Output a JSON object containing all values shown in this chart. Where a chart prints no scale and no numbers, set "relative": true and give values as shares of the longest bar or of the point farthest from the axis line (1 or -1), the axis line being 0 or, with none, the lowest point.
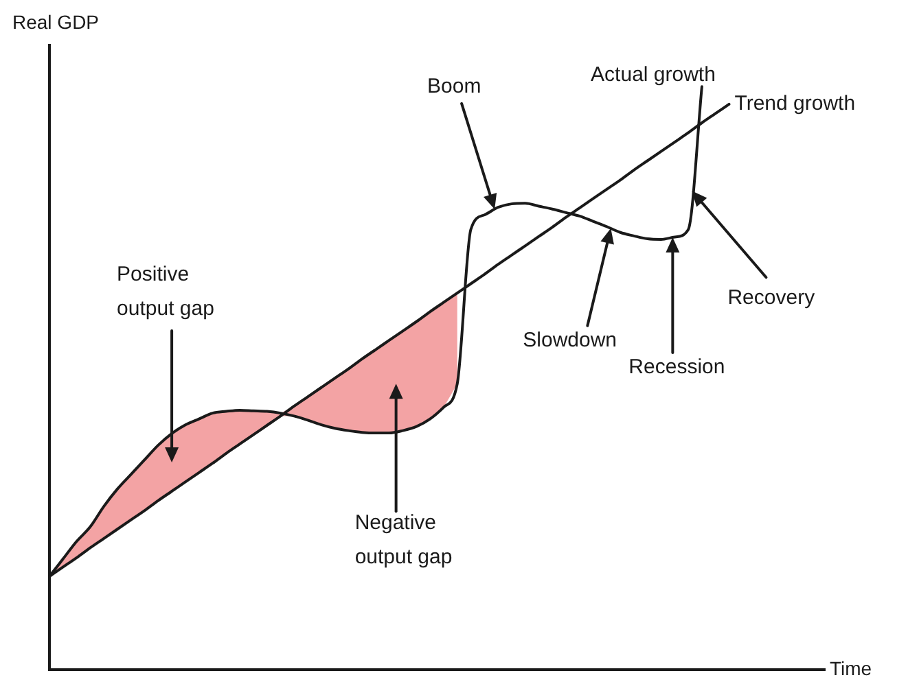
{
  "chart_data": {
    "type": "line",
    "relative": true,
    "xlabel": "Time",
    "ylabel": "Real GDP",
    "tick_labels": false,
    "marker": "none",
    "categories": [
      null,
      null,
      null,
      null,
      null,
      null,
      null,
      null,
      null,
      null,
      null,
      null,
      null,
      null,
      null,
      null,
      null,
      null,
      null,
      null,
      null,
      null,
      null,
      null,
      null,
      null,
      null,
      null,
      null,
      null,
      null,
      null,
      null,
      null,
      null,
      null,
      null,
      null,
      null,
      null,
      null,
      null,
      null,
      null,
      null,
      null,
      null,
      null,
      null,
      null,
      null,
      null,
      null,
      null,
      null,
      null,
      null,
      null
    ],
    "series": [
      {
        "name": "Trend growth",
        "color": "#1a1a1a",
        "values": [
          0.16,
          0.176,
          0.192,
          0.209,
          0.225,
          0.241,
          0.257,
          0.273,
          0.29,
          0.306,
          0.322,
          0.338,
          0.354,
          0.371,
          0.387,
          0.403,
          0.419,
          0.435,
          0.452,
          0.468,
          0.484,
          0.5,
          0.516,
          0.533,
          0.549,
          0.565,
          0.581,
          0.597,
          0.614,
          0.63,
          0.646,
          0.662,
          0.678,
          0.695,
          0.711,
          0.727,
          0.743,
          0.759,
          0.776,
          0.792,
          0.808,
          0.824,
          0.84,
          0.857,
          0.873,
          0.889,
          0.905,
          0.921,
          0.938,
          0.954,
          0.97,
          null,
          null,
          null,
          null,
          null,
          null,
          null
        ]
      },
      {
        "name": "Actual growth",
        "color": "#1a1a1a",
        "values": [
          0.16,
          0.19,
          0.22,
          0.245,
          0.28,
          0.31,
          0.335,
          0.36,
          0.385,
          0.405,
          0.42,
          0.43,
          0.44,
          0.443,
          0.445,
          0.444,
          0.443,
          0.44,
          0.435,
          0.428,
          0.42,
          0.414,
          0.41,
          0.407,
          0.406,
          0.406,
          0.41,
          0.417,
          0.43,
          0.45,
          0.49,
          0.755,
          0.78,
          0.793,
          0.799,
          0.8,
          0.795,
          0.79,
          0.784,
          0.778,
          0.769,
          0.76,
          0.75,
          0.744,
          0.739,
          0.738,
          0.742,
          0.755,
          1.0,
          null,
          null,
          null,
          null,
          null,
          null,
          null,
          null,
          null
        ]
      },
      {
        "color": "#e8474a",
        "values": [
          null,
          null,
          null,
          null,
          null,
          null,
          null,
          null,
          null,
          null,
          null,
          null,
          null,
          null,
          null,
          null,
          null,
          null,
          null,
          null,
          null,
          null,
          null,
          null,
          null,
          null,
          null,
          null,
          null,
          null,
          null,
          null,
          null,
          null,
          null,
          null,
          null,
          null,
          null,
          null,
          null,
          null,
          null,
          null,
          null,
          null,
          null,
          null,
          null,
          null,
          null,
          null,
          null,
          null,
          null,
          null,
          null,
          null
        ],
        "lower": [
          0.16,
          0.176,
          0.192,
          0.209,
          0.225,
          0.241,
          0.257,
          0.273,
          0.29,
          0.306,
          0.322,
          0.338,
          0.354,
          0.371,
          0.387,
          0.403,
          0.419,
          0.435,
          0.435,
          0.428,
          0.42,
          0.414,
          0.41,
          0.407,
          0.406,
          0.406,
          0.41,
          0.417,
          0.43,
          0.45,
          0.49,
          null,
          null,
          null,
          null,
          null,
          null,
          null,
          null,
          null,
          null,
          null,
          null,
          null,
          null,
          null,
          null,
          null,
          null,
          null,
          null,
          null,
          null,
          null,
          null,
          null,
          null,
          null
        ],
        "upper": [
          0.16,
          0.19,
          0.22,
          0.245,
          0.28,
          0.31,
          0.335,
          0.36,
          0.385,
          0.405,
          0.42,
          0.43,
          0.44,
          0.443,
          0.445,
          0.444,
          0.443,
          0.44,
          0.452,
          0.468,
          0.484,
          0.5,
          0.516,
          0.533,
          0.549,
          0.565,
          0.581,
          0.597,
          0.614,
          0.63,
          0.646,
          null,
          null,
          null,
          null,
          null,
          null,
          null,
          null,
          null,
          null,
          null,
          null,
          null,
          null,
          null,
          null,
          null,
          null,
          null,
          null,
          null,
          null,
          null,
          null,
          null,
          null,
          null
        ]
      }
    ],
    "annotations": [
      "Boom",
      "Positive\noutput gap",
      "Slowdown",
      "Recovery",
      "Recession",
      "Negative\noutput gap"
    ]
  }
}
